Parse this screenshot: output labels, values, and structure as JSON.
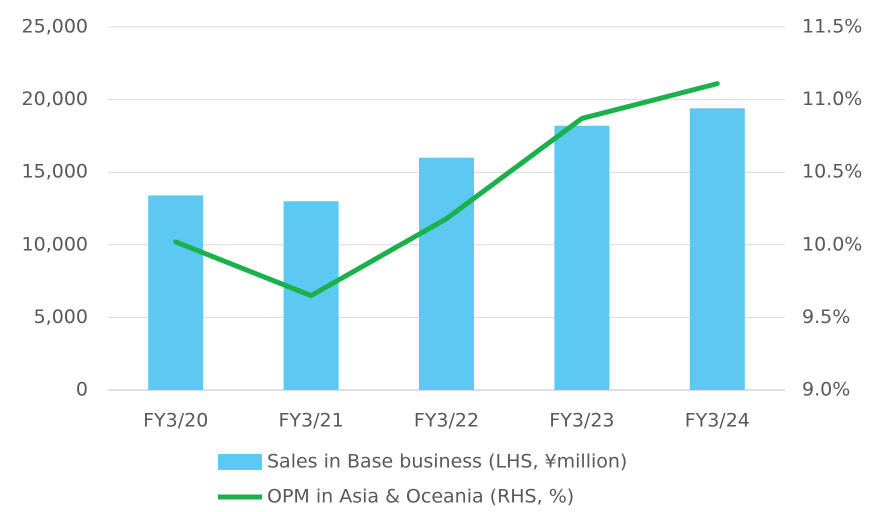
{
  "chart_data": {
    "type": "combo",
    "categories": [
      "FY3/20",
      "FY3/21",
      "FY3/22",
      "FY3/23",
      "FY3/24"
    ],
    "series": [
      {
        "name": "Sales in Base business (LHS, ¥million)",
        "type": "bar",
        "color": "#5bc9f2",
        "values": [
          13400,
          13000,
          16000,
          18200,
          19400
        ]
      },
      {
        "name": "OPM in Asia & Oceania (RHS, %)",
        "type": "line",
        "axis": "y2",
        "color": "#1cb04b",
        "values": [
          10.02,
          9.65,
          10.18,
          10.87,
          11.11
        ]
      }
    ],
    "ylim": [
      0,
      25000
    ],
    "yticks": [
      0,
      {
        "value": 5000,
        "label": "5,000"
      },
      {
        "value": 10000,
        "label": "10,000"
      },
      {
        "value": 15000,
        "label": "15,000"
      },
      {
        "value": 20000,
        "label": "20,000"
      },
      {
        "value": 25000,
        "label": "25,000"
      }
    ],
    "y2lim": [
      9,
      11.5
    ],
    "y2ticks": [
      {
        "value": 9,
        "label": "9.0%"
      },
      {
        "value": 9.5,
        "label": "9.5%"
      },
      {
        "value": 10,
        "label": "10.0%"
      },
      {
        "value": 10.5,
        "label": "10.5%"
      },
      {
        "value": 11,
        "label": "11.0%"
      },
      {
        "value": 11.5,
        "label": "11.5%"
      }
    ],
    "grid": true
  }
}
